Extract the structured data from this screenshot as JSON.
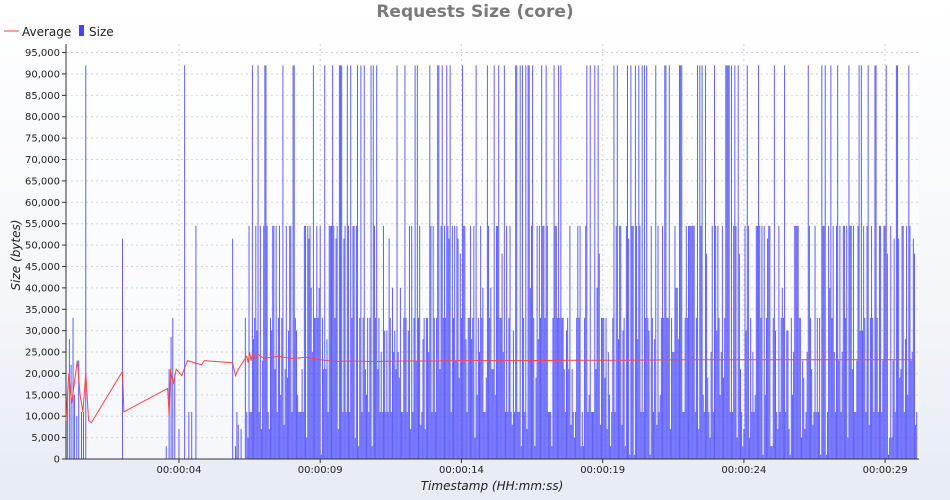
{
  "chart_data": {
    "type": "bar",
    "title": "Requests Size (core)",
    "xlabel": "Timestamp (HH:mm:ss)",
    "ylabel": "Size (bytes)",
    "ylim": [
      0,
      97000
    ],
    "xlim_seconds": [
      0.0,
      30.2
    ],
    "y_ticks": [
      0,
      5000,
      10000,
      15000,
      20000,
      25000,
      30000,
      35000,
      40000,
      45000,
      50000,
      55000,
      60000,
      65000,
      70000,
      75000,
      80000,
      85000,
      90000,
      95000
    ],
    "y_tick_labels": [
      "0",
      "5,000",
      "10,000",
      "15,000",
      "20,000",
      "25,000",
      "30,000",
      "35,000",
      "40,000",
      "45,000",
      "50,000",
      "55,000",
      "60,000",
      "65,000",
      "70,000",
      "75,000",
      "80,000",
      "85,000",
      "90,000",
      "95,000"
    ],
    "x_ticks": [
      {
        "t": 4.0,
        "label": "00:00:04"
      },
      {
        "t": 9.0,
        "label": "00:00:09"
      },
      {
        "t": 14.0,
        "label": "00:00:14"
      },
      {
        "t": 19.0,
        "label": "00:00:19"
      },
      {
        "t": 24.0,
        "label": "00:00:24"
      },
      {
        "t": 29.0,
        "label": "00:00:29"
      }
    ],
    "grid": true,
    "legend_position": "top-left",
    "series": [
      {
        "name": "Average",
        "type": "line",
        "color": "#ff4444",
        "points": [
          [
            0.0,
            9000
          ],
          [
            0.1,
            20000
          ],
          [
            0.2,
            13000
          ],
          [
            0.3,
            18000
          ],
          [
            0.4,
            23000
          ],
          [
            0.5,
            15000
          ],
          [
            0.6,
            11000
          ],
          [
            0.7,
            20000
          ],
          [
            0.8,
            9000
          ],
          [
            0.9,
            8500
          ],
          [
            2.0,
            20500
          ],
          [
            2.05,
            11000
          ],
          [
            3.6,
            16500
          ],
          [
            3.65,
            10000
          ],
          [
            3.7,
            21000
          ],
          [
            3.8,
            17500
          ],
          [
            3.9,
            21000
          ],
          [
            4.1,
            19500
          ],
          [
            4.3,
            23000
          ],
          [
            4.8,
            22000
          ],
          [
            4.9,
            23000
          ],
          [
            5.9,
            22500
          ],
          [
            6.0,
            19500
          ],
          [
            6.1,
            21000
          ],
          [
            6.2,
            22000
          ],
          [
            6.4,
            24000
          ],
          [
            6.45,
            22500
          ],
          [
            6.5,
            25000
          ],
          [
            6.55,
            23000
          ],
          [
            6.6,
            24500
          ],
          [
            6.7,
            23500
          ],
          [
            6.8,
            24500
          ],
          [
            7.0,
            23500
          ],
          [
            7.5,
            24000
          ],
          [
            8.0,
            23500
          ],
          [
            8.5,
            23800
          ],
          [
            9.0,
            23200
          ],
          [
            9.5,
            22800
          ],
          [
            10.0,
            22900
          ],
          [
            11.0,
            22800
          ],
          [
            12.0,
            22900
          ],
          [
            13.0,
            22900
          ],
          [
            14.0,
            23000
          ],
          [
            16.0,
            23000
          ],
          [
            18.0,
            23100
          ],
          [
            20.0,
            23100
          ],
          [
            22.0,
            23200
          ],
          [
            24.0,
            23200
          ],
          [
            26.0,
            23200
          ],
          [
            28.0,
            23200
          ],
          [
            30.0,
            23200
          ]
        ]
      },
      {
        "name": "Size",
        "type": "bar",
        "color": "#4444ff",
        "sample_interval_s": 0.04,
        "early_bars": [
          [
            0.0,
            9000
          ],
          [
            0.05,
            15000
          ],
          [
            0.12,
            28000
          ],
          [
            0.18,
            22000
          ],
          [
            0.25,
            33000
          ],
          [
            0.3,
            15000
          ],
          [
            0.38,
            10000
          ],
          [
            0.45,
            23000
          ],
          [
            0.55,
            11000
          ],
          [
            0.62,
            11000
          ],
          [
            0.7,
            92000
          ],
          [
            2.0,
            51500
          ],
          [
            3.55,
            3000
          ],
          [
            3.65,
            21000
          ],
          [
            3.72,
            28500
          ],
          [
            3.78,
            33000
          ],
          [
            3.85,
            20000
          ],
          [
            4.0,
            7000
          ],
          [
            4.2,
            92000
          ],
          [
            4.35,
            11000
          ],
          [
            4.45,
            11000
          ],
          [
            4.6,
            54500
          ],
          [
            5.9,
            51500
          ],
          [
            6.0,
            3000
          ],
          [
            6.05,
            11000
          ],
          [
            6.1,
            8000
          ],
          [
            6.2,
            7000
          ],
          [
            6.35,
            33000
          ]
        ],
        "value_levels": [
          1000,
          3000,
          5000,
          7000,
          8000,
          11000,
          15000,
          19000,
          21000,
          23000,
          25000,
          28000,
          30000,
          33000,
          40000,
          48000,
          51500,
          54500,
          92000
        ]
      }
    ]
  }
}
